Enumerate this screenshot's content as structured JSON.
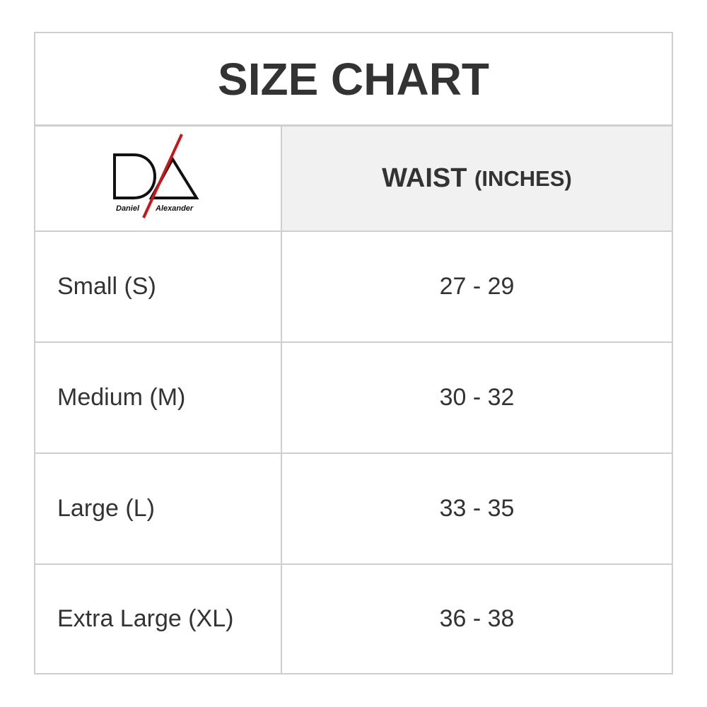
{
  "title": "SIZE CHART",
  "logo": {
    "text_left": "Daniel",
    "text_right": "Alexander",
    "accent_color": "#c8161d"
  },
  "header": {
    "measure": "WAIST",
    "unit": "(INCHES)"
  },
  "rows": [
    {
      "size": "Small (S)",
      "waist": "27 - 29"
    },
    {
      "size": "Medium (M)",
      "waist": "30 - 32"
    },
    {
      "size": "Large (L)",
      "waist": "33 - 35"
    },
    {
      "size": "Extra Large (XL)",
      "waist": "36 - 38"
    }
  ]
}
